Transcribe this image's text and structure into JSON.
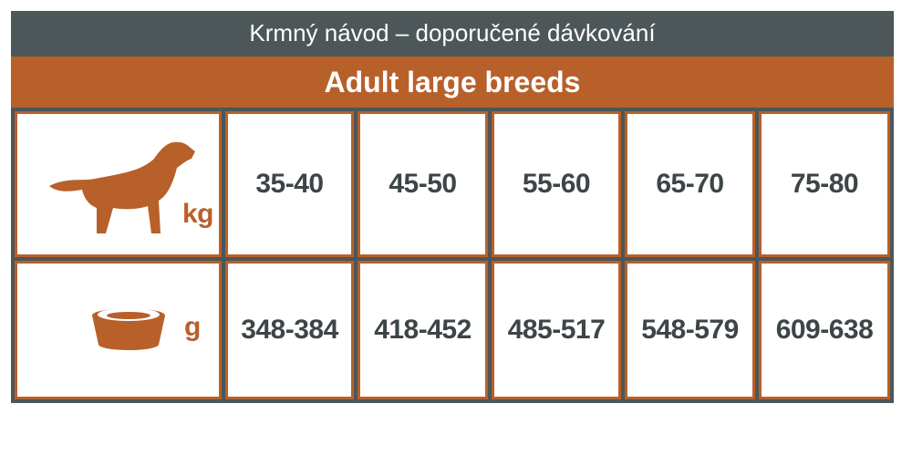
{
  "header": {
    "title": "Krmný návod – doporučené dávkování",
    "subtitle": "Adult large breeds"
  },
  "table": {
    "rows": [
      [
        "kg",
        "35-40",
        "45-50",
        "55-60",
        "65-70",
        "75-80"
      ],
      [
        "g",
        "348-384",
        "418-452",
        "485-517",
        "548-579",
        "609-638"
      ]
    ]
  }
}
